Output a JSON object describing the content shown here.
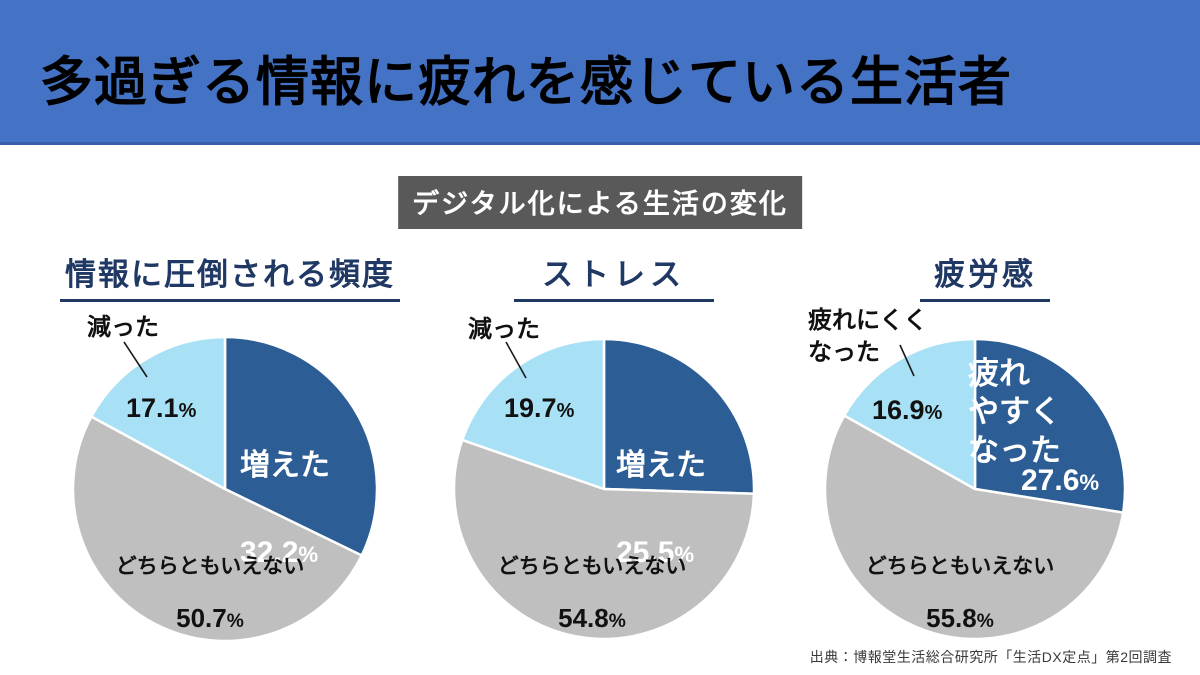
{
  "header": {
    "title": "多過ぎる情報に疲れを感じている生活者"
  },
  "badge": {
    "label": "デジタル化による生活の変化"
  },
  "units": {
    "percent": "%"
  },
  "source": {
    "text": "出典：博報堂生活総合研究所「生活DX定点」第2回調査"
  },
  "colors": {
    "header_bg": "#4472C4",
    "badge_bg": "#595959",
    "chart_title": "#1F3864",
    "slice_increase": "#2C5D94",
    "slice_neutral": "#BFBFBF",
    "slice_decrease": "#A8E0F5",
    "label_dark": "#111111",
    "label_light": "#FFFFFF"
  },
  "chart_data": [
    {
      "type": "pie",
      "title": "情報に圧倒される頻度",
      "start_angle_deg": 0,
      "direction": "clockwise",
      "legend_position": "inside",
      "slices": [
        {
          "label": "増えた",
          "value": 32.2,
          "color": "#2C5D94"
        },
        {
          "label": "どちらともいえない",
          "value": 50.7,
          "color": "#BFBFBF"
        },
        {
          "label": "減った",
          "value": 17.1,
          "color": "#A8E0F5"
        }
      ]
    },
    {
      "type": "pie",
      "title": "ストレス",
      "start_angle_deg": 0,
      "direction": "clockwise",
      "legend_position": "inside",
      "slices": [
        {
          "label": "増えた",
          "value": 25.5,
          "color": "#2C5D94"
        },
        {
          "label": "どちらともいえない",
          "value": 54.8,
          "color": "#BFBFBF"
        },
        {
          "label": "減った",
          "value": 19.7,
          "color": "#A8E0F5"
        }
      ]
    },
    {
      "type": "pie",
      "title": "疲労感",
      "start_angle_deg": 0,
      "direction": "clockwise",
      "legend_position": "inside",
      "slices": [
        {
          "label": "疲れ\nやすく\nなった",
          "value": 27.6,
          "color": "#2C5D94"
        },
        {
          "label": "どちらともいえない",
          "value": 55.8,
          "color": "#BFBFBF"
        },
        {
          "label": "疲れにくく\nなった",
          "value": 16.9,
          "color": "#A8E0F5"
        }
      ]
    }
  ]
}
